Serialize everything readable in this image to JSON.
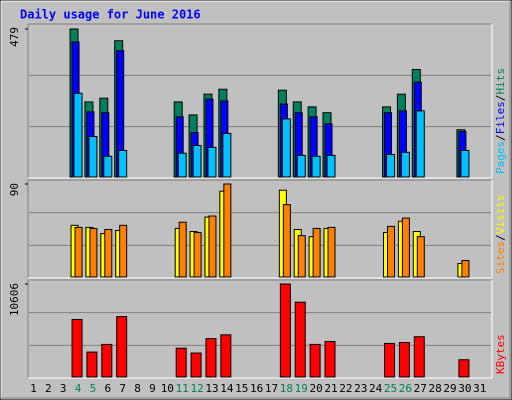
{
  "chart_data": [
    {
      "type": "bar",
      "title": "Daily usage for June 2016",
      "ylim": [
        0,
        479
      ],
      "yticks": [
        479
      ],
      "legend_separator": "/",
      "series": [
        {
          "name": "Hits",
          "color": "#00805c",
          "values": [
            0,
            0,
            0,
            479,
            243,
            255,
            441,
            0,
            0,
            0,
            243,
            201,
            268,
            284,
            0,
            0,
            0,
            281,
            243,
            227,
            208,
            0,
            0,
            0,
            227,
            268,
            348,
            0,
            0,
            153,
            0
          ]
        },
        {
          "name": "Files",
          "color": "#0000ff",
          "values": [
            0,
            0,
            0,
            437,
            211,
            208,
            409,
            0,
            0,
            0,
            195,
            144,
            252,
            246,
            0,
            0,
            0,
            236,
            208,
            195,
            172,
            0,
            0,
            0,
            208,
            214,
            307,
            0,
            0,
            147,
            0
          ]
        },
        {
          "name": "Pages",
          "color": "#00c0ff",
          "values": [
            0,
            0,
            0,
            271,
            131,
            67,
            86,
            0,
            0,
            0,
            77,
            102,
            96,
            141,
            0,
            0,
            0,
            188,
            70,
            67,
            70,
            0,
            0,
            0,
            73,
            80,
            214,
            0,
            0,
            86,
            0
          ]
        }
      ]
    },
    {
      "type": "bar",
      "ylim": [
        0,
        90
      ],
      "yticks": [
        90
      ],
      "legend_separator": "/",
      "series": [
        {
          "name": "Visits",
          "color": "#ffff00",
          "values": [
            0,
            0,
            0,
            50,
            48,
            42,
            45,
            0,
            0,
            0,
            47,
            44,
            58,
            83,
            0,
            0,
            0,
            84,
            46,
            39,
            47,
            0,
            0,
            0,
            43,
            54,
            44,
            0,
            0,
            13,
            0
          ]
        },
        {
          "name": "Sites",
          "color": "#ff8000",
          "values": [
            0,
            0,
            0,
            48,
            47,
            46,
            50,
            0,
            0,
            0,
            53,
            43,
            59,
            90,
            0,
            0,
            0,
            70,
            40,
            47,
            48,
            0,
            0,
            0,
            49,
            57,
            39,
            0,
            0,
            16,
            0
          ]
        }
      ]
    },
    {
      "type": "bar",
      "ylim": [
        0,
        10606
      ],
      "yticks": [
        10606
      ],
      "categories": [
        "1",
        "2",
        "3",
        "4",
        "5",
        "6",
        "7",
        "8",
        "9",
        "10",
        "11",
        "12",
        "13",
        "14",
        "15",
        "16",
        "17",
        "18",
        "19",
        "20",
        "21",
        "22",
        "23",
        "24",
        "25",
        "26",
        "27",
        "28",
        "29",
        "30",
        "31"
      ],
      "category_colors": [
        "#000",
        "#000",
        "#000",
        "#00805c",
        "#00805c",
        "#000",
        "#000",
        "#000",
        "#000",
        "#000",
        "#00805c",
        "#00805c",
        "#000",
        "#000",
        "#000",
        "#000",
        "#000",
        "#00805c",
        "#00805c",
        "#000",
        "#000",
        "#000",
        "#000",
        "#000",
        "#00805c",
        "#00805c",
        "#000",
        "#000",
        "#000",
        "#000",
        "#000"
      ],
      "series": [
        {
          "name": "KBytes",
          "color": "#ff0000",
          "values": [
            0,
            0,
            0,
            6560,
            2843,
            3718,
            6888,
            0,
            0,
            0,
            3280,
            2733,
            4374,
            4811,
            0,
            0,
            0,
            10606,
            8529,
            3718,
            4046,
            0,
            0,
            0,
            3827,
            3937,
            4592,
            0,
            0,
            1968,
            0
          ]
        }
      ]
    }
  ]
}
